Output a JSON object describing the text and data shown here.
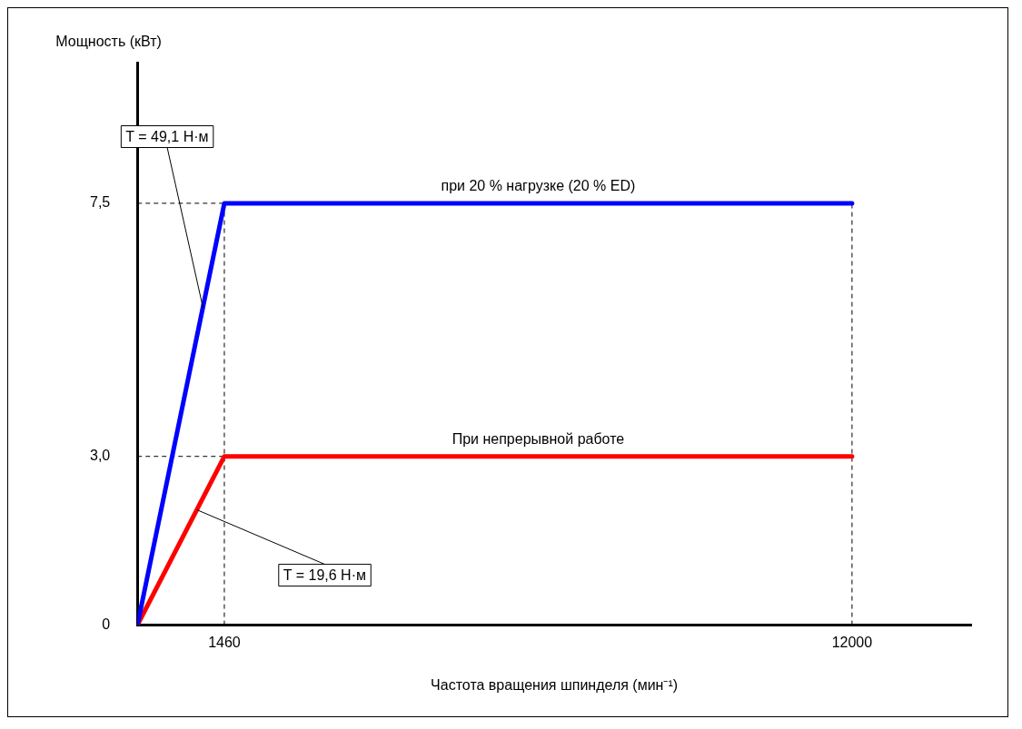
{
  "chart_data": {
    "type": "line",
    "xlabel": "Частота вращения шпинделя (мин⁻¹)",
    "ylabel": "Мощность (кВт)",
    "xlim": [
      0,
      14000
    ],
    "xticks": [
      1460,
      12000
    ],
    "ylim": [
      0,
      10
    ],
    "yticks": [
      0,
      {
        "value": 3,
        "label": "3,0"
      },
      {
        "value": 7.5,
        "label": "7,5"
      }
    ],
    "grid": false,
    "legend": false,
    "marker": "none",
    "line_style": "solid",
    "series": [
      {
        "name": "при 20 % нагрузке (20 % ED)",
        "color": "#0000ff",
        "x": [
          0,
          1460,
          12000
        ],
        "values": [
          0,
          7.5,
          7.5
        ]
      },
      {
        "name": "При непрерывной работе",
        "color": "#ff0000",
        "x": [
          0,
          1460,
          12000
        ],
        "values": [
          0,
          3,
          3
        ]
      }
    ],
    "ref_lines": [
      {
        "axis": "y",
        "value": 7.5,
        "color": "#000000",
        "line_style": "dashed"
      },
      {
        "axis": "y",
        "value": 3,
        "color": "#000000",
        "line_style": "dashed"
      },
      {
        "axis": "x",
        "value": 1460,
        "color": "#000000",
        "line_style": "dashed"
      },
      {
        "axis": "x",
        "value": 12000,
        "color": "#000000",
        "line_style": "dashed"
      }
    ],
    "annotations": [
      {
        "text": "T = 49,1 Н·м",
        "x": 1100,
        "y": 5.65
      },
      {
        "text": "T = 19,6 Н·м",
        "x": 1000,
        "y": 2.05
      }
    ]
  }
}
